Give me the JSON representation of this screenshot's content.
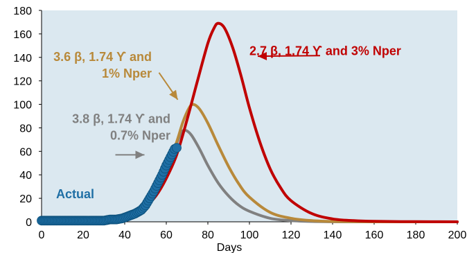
{
  "chart_data": {
    "type": "line",
    "title": "",
    "xlabel": "Days",
    "ylabel": "",
    "xlim": [
      0,
      200
    ],
    "ylim": [
      0,
      180
    ],
    "x_ticks": [
      0,
      20,
      40,
      60,
      80,
      100,
      120,
      140,
      160,
      180,
      200
    ],
    "y_ticks": [
      0,
      20,
      40,
      60,
      80,
      100,
      120,
      140,
      160,
      180
    ],
    "grid": false,
    "plot_background": "#dbe8f0",
    "series": [
      {
        "key": "scenario_3_8",
        "color": "#808080",
        "peak": {
          "x": 69,
          "y": 78
        },
        "points": [
          [
            0,
            0.3
          ],
          [
            20,
            0.6
          ],
          [
            30,
            1
          ],
          [
            40,
            3
          ],
          [
            45,
            7
          ],
          [
            50,
            14
          ],
          [
            55,
            26
          ],
          [
            60,
            45
          ],
          [
            64,
            62
          ],
          [
            67,
            75
          ],
          [
            69,
            78
          ],
          [
            72,
            74
          ],
          [
            76,
            62
          ],
          [
            80,
            48
          ],
          [
            85,
            33
          ],
          [
            90,
            22
          ],
          [
            95,
            14
          ],
          [
            100,
            9
          ],
          [
            110,
            3
          ],
          [
            120,
            1
          ],
          [
            130,
            0.3
          ],
          [
            150,
            0
          ],
          [
            200,
            0
          ]
        ]
      },
      {
        "key": "scenario_3_6",
        "color": "#b8893a",
        "peak": {
          "x": 73,
          "y": 100
        },
        "points": [
          [
            0,
            0.3
          ],
          [
            20,
            0.6
          ],
          [
            30,
            1
          ],
          [
            40,
            3
          ],
          [
            45,
            7
          ],
          [
            50,
            14
          ],
          [
            55,
            25
          ],
          [
            60,
            44
          ],
          [
            65,
            68
          ],
          [
            68,
            85
          ],
          [
            71,
            97
          ],
          [
            73,
            100
          ],
          [
            76,
            96
          ],
          [
            80,
            84
          ],
          [
            85,
            65
          ],
          [
            90,
            47
          ],
          [
            95,
            32
          ],
          [
            100,
            21
          ],
          [
            110,
            8
          ],
          [
            120,
            3
          ],
          [
            130,
            1
          ],
          [
            140,
            0.3
          ],
          [
            160,
            0
          ],
          [
            200,
            0
          ]
        ]
      },
      {
        "key": "scenario_2_7",
        "color": "#c00000",
        "peak": {
          "x": 85,
          "y": 169
        },
        "points": [
          [
            0,
            0.5
          ],
          [
            20,
            1
          ],
          [
            30,
            2
          ],
          [
            40,
            4
          ],
          [
            45,
            7
          ],
          [
            50,
            13
          ],
          [
            55,
            22
          ],
          [
            60,
            37
          ],
          [
            65,
            57
          ],
          [
            70,
            87
          ],
          [
            75,
            120
          ],
          [
            80,
            152
          ],
          [
            83,
            165
          ],
          [
            85,
            169
          ],
          [
            88,
            165
          ],
          [
            92,
            148
          ],
          [
            96,
            124
          ],
          [
            100,
            97
          ],
          [
            105,
            68
          ],
          [
            110,
            45
          ],
          [
            115,
            29
          ],
          [
            120,
            18
          ],
          [
            130,
            7
          ],
          [
            140,
            2.5
          ],
          [
            150,
            1
          ],
          [
            160,
            0.4
          ],
          [
            180,
            0.1
          ],
          [
            200,
            0
          ]
        ]
      }
    ],
    "actual": {
      "name": "Actual",
      "color": "#1f6fa5",
      "points": [
        [
          0,
          1
        ],
        [
          5,
          1
        ],
        [
          10,
          1
        ],
        [
          15,
          1
        ],
        [
          20,
          1
        ],
        [
          25,
          1
        ],
        [
          30,
          1
        ],
        [
          33,
          2
        ],
        [
          36,
          2
        ],
        [
          39,
          3
        ],
        [
          42,
          5
        ],
        [
          45,
          7
        ],
        [
          48,
          10
        ],
        [
          50,
          14
        ],
        [
          52,
          20
        ],
        [
          54,
          26
        ],
        [
          56,
          33
        ],
        [
          58,
          40
        ],
        [
          60,
          48
        ],
        [
          62,
          55
        ],
        [
          64,
          62
        ],
        [
          65,
          63
        ]
      ]
    },
    "annotations": [
      {
        "key": "a27",
        "lines": [
          "2.7 β, 1.74 ϒ and 3% Nper"
        ],
        "color": "#c00000"
      },
      {
        "key": "a36",
        "lines": [
          "3.6 β, 1.74 ϒ and",
          "1% Nper"
        ],
        "color": "#b8893a"
      },
      {
        "key": "a38",
        "lines": [
          "3.8 β, 1.74 ϒ and",
          "0.7% Nper"
        ],
        "color": "#808080"
      }
    ]
  }
}
